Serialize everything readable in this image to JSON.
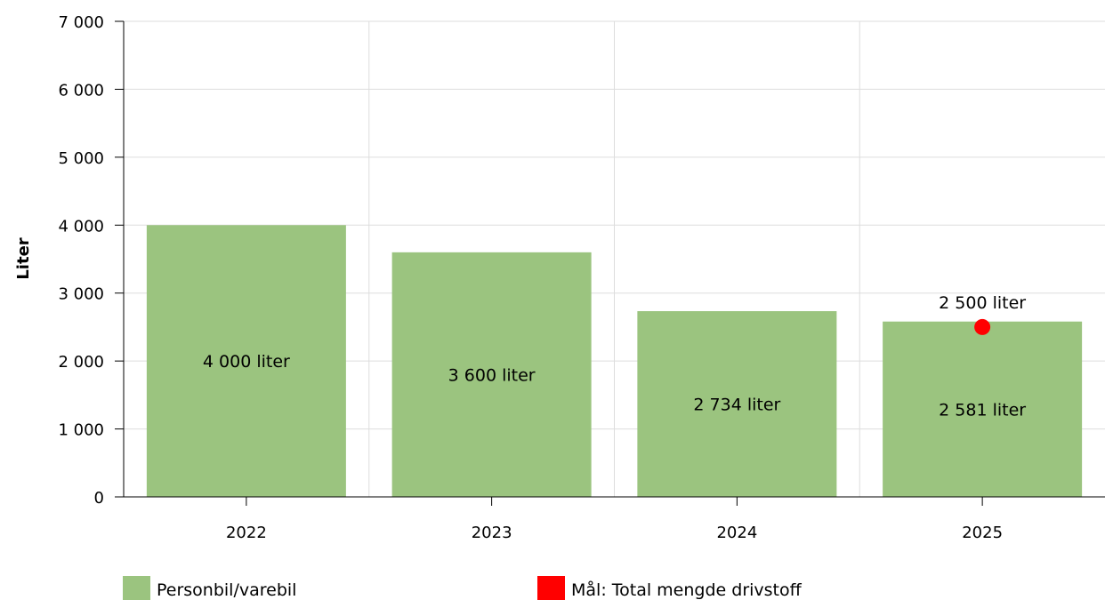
{
  "chart_data": {
    "type": "bar",
    "title": "",
    "xlabel": "",
    "ylabel": "Liter",
    "ylim": [
      0,
      7000
    ],
    "yticks": [
      "0",
      "1 000",
      "2 000",
      "3 000",
      "4 000",
      "5 000",
      "6 000",
      "7 000"
    ],
    "ytick_values": [
      0,
      1000,
      2000,
      3000,
      4000,
      5000,
      6000,
      7000
    ],
    "categories": [
      "2022",
      "2023",
      "2024",
      "2025"
    ],
    "grid": true,
    "legend_position": "bottom",
    "series": [
      {
        "name": "Personbil/varebil",
        "type": "bar",
        "color": "#9bc47f",
        "values": [
          4000,
          3600,
          2734,
          2581
        ],
        "labels": [
          "4 000 liter",
          "3 600 liter",
          "2 734 liter",
          "2 581 liter"
        ]
      },
      {
        "name": "Mål: Total mengde drivstoff",
        "type": "scatter",
        "color": "#ff0000",
        "category": "2025",
        "value": 2500,
        "label": "2 500 liter"
      }
    ]
  }
}
